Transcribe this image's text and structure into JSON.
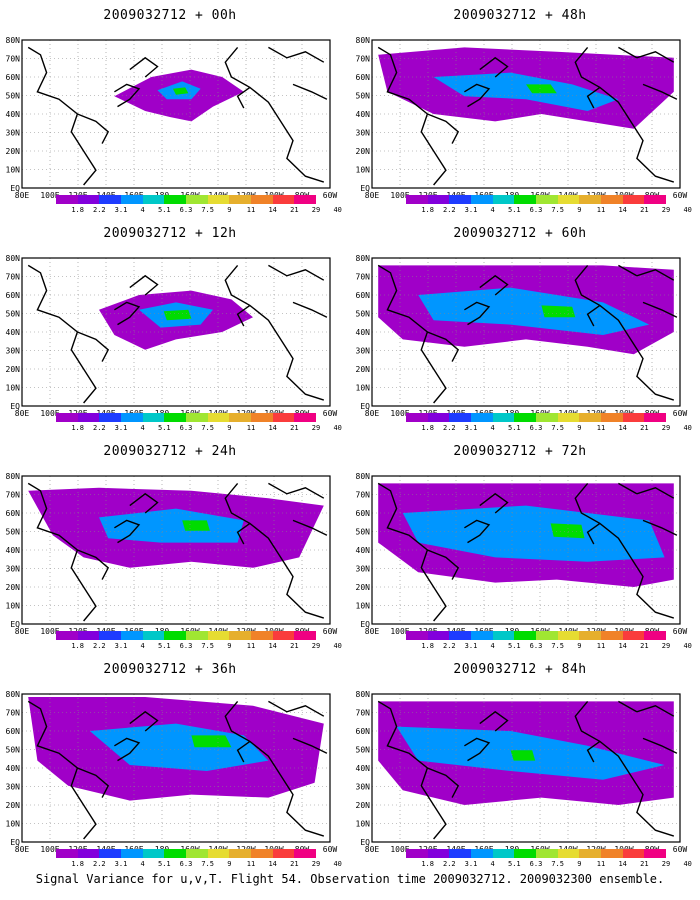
{
  "panels": [
    {
      "title": "2009032712 + 00h"
    },
    {
      "title": "2009032712 + 48h"
    },
    {
      "title": "2009032712 + 12h"
    },
    {
      "title": "2009032712 + 60h"
    },
    {
      "title": "2009032712 + 24h"
    },
    {
      "title": "2009032712 + 72h"
    },
    {
      "title": "2009032712 + 36h"
    },
    {
      "title": "2009032712 + 84h"
    }
  ],
  "lat_labels": [
    "80N",
    "70N",
    "60N",
    "50N",
    "40N",
    "30N",
    "20N",
    "10N",
    "EQ"
  ],
  "lon_labels": [
    "80E",
    "100E",
    "120E",
    "140E",
    "160E",
    "180",
    "160W",
    "140W",
    "120W",
    "100W",
    "80W",
    "60W"
  ],
  "colorbar": {
    "labels": [
      "1.8",
      "2.2",
      "3.1",
      "4",
      "5.1",
      "6.3",
      "7.5",
      "9",
      "11",
      "14",
      "21",
      "29",
      "40"
    ],
    "colors": [
      "#a000c8",
      "#8200dc",
      "#1e3cff",
      "#0096ff",
      "#00c8c8",
      "#00dc00",
      "#a0e632",
      "#e6dc32",
      "#e6af2d",
      "#f08228",
      "#fa3c3c",
      "#f00082"
    ]
  },
  "footer": "Signal Variance for u,v,T. Flight 54. Observation time 2009032712. 2009032300 ensemble."
}
